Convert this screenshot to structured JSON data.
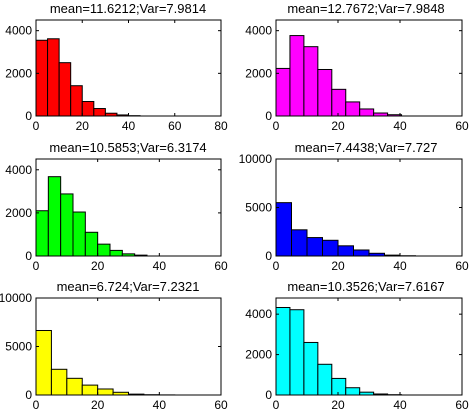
{
  "chart_data": [
    {
      "type": "bar",
      "title": "mean=11.6212;Var=7.9814",
      "color": "#ff0000",
      "xlim": [
        0,
        80
      ],
      "ylim": [
        0,
        4500
      ],
      "xticks": [
        "0",
        "20",
        "40",
        "60",
        "80"
      ],
      "yticks": [
        "0",
        "2000",
        "4000"
      ],
      "bins": [
        [
          0,
          5,
          3550
        ],
        [
          5,
          10,
          3620
        ],
        [
          10,
          15,
          2500
        ],
        [
          15,
          20,
          1420
        ],
        [
          20,
          25,
          680
        ],
        [
          25,
          30,
          350
        ],
        [
          30,
          35,
          130
        ],
        [
          35,
          40,
          50
        ],
        [
          40,
          45,
          15
        ]
      ]
    },
    {
      "type": "bar",
      "title": "mean=12.7672;Var=7.9848",
      "color": "#ff00ff",
      "xlim": [
        0,
        60
      ],
      "ylim": [
        0,
        4500
      ],
      "xticks": [
        "0",
        "20",
        "40",
        "60"
      ],
      "yticks": [
        "0",
        "2000",
        "4000"
      ],
      "bins": [
        [
          0,
          4.5,
          2230
        ],
        [
          4.5,
          9,
          3770
        ],
        [
          9,
          13.5,
          3250
        ],
        [
          13.5,
          18,
          2180
        ],
        [
          18,
          22.5,
          1250
        ],
        [
          22.5,
          27,
          660
        ],
        [
          27,
          31.5,
          330
        ],
        [
          31.5,
          36,
          140
        ],
        [
          36,
          40.5,
          60
        ]
      ]
    },
    {
      "type": "bar",
      "title": "mean=10.5853;Var=6.3174",
      "color": "#00ff00",
      "xlim": [
        0,
        60
      ],
      "ylim": [
        0,
        4500
      ],
      "xticks": [
        "0",
        "20",
        "40",
        "60"
      ],
      "yticks": [
        "0",
        "2000",
        "4000"
      ],
      "bins": [
        [
          0,
          4,
          2100
        ],
        [
          4,
          8,
          3680
        ],
        [
          8,
          12,
          2880
        ],
        [
          12,
          16,
          2040
        ],
        [
          16,
          20,
          1100
        ],
        [
          20,
          24,
          550
        ],
        [
          24,
          28,
          260
        ],
        [
          28,
          32,
          100
        ],
        [
          32,
          36,
          40
        ]
      ]
    },
    {
      "type": "bar",
      "title": "mean=7.4438;Var=7.727",
      "color": "#0000ff",
      "xlim": [
        0,
        60
      ],
      "ylim": [
        0,
        10000
      ],
      "xticks": [
        "0",
        "20",
        "40",
        "60"
      ],
      "yticks": [
        "0",
        "5000",
        "10000"
      ],
      "bins": [
        [
          0,
          5,
          5500
        ],
        [
          5,
          10,
          2700
        ],
        [
          10,
          15,
          1900
        ],
        [
          15,
          20,
          1620
        ],
        [
          20,
          25,
          1050
        ],
        [
          25,
          30,
          620
        ],
        [
          30,
          35,
          280
        ],
        [
          35,
          40,
          90
        ],
        [
          40,
          45,
          25
        ]
      ]
    },
    {
      "type": "bar",
      "title": "mean=6.724;Var=7.2321",
      "color": "#ffff00",
      "xlim": [
        0,
        60
      ],
      "ylim": [
        0,
        10000
      ],
      "xticks": [
        "0",
        "20",
        "40",
        "60"
      ],
      "yticks": [
        "0",
        "5000",
        "10000"
      ],
      "bins": [
        [
          0,
          5,
          6650
        ],
        [
          5,
          10,
          2650
        ],
        [
          10,
          15,
          1720
        ],
        [
          15,
          20,
          1020
        ],
        [
          20,
          25,
          620
        ],
        [
          25,
          30,
          280
        ],
        [
          30,
          35,
          90
        ],
        [
          35,
          40,
          30
        ],
        [
          40,
          45,
          10
        ]
      ]
    },
    {
      "type": "bar",
      "title": "mean=10.3526;Var=7.6167",
      "color": "#00ffff",
      "xlim": [
        0,
        60
      ],
      "ylim": [
        0,
        4800
      ],
      "xticks": [
        "0",
        "20",
        "40",
        "60"
      ],
      "yticks": [
        "0",
        "2000",
        "4000"
      ],
      "bins": [
        [
          0,
          4.5,
          4330
        ],
        [
          4.5,
          9,
          4220
        ],
        [
          9,
          13.5,
          2600
        ],
        [
          13.5,
          18,
          1520
        ],
        [
          18,
          22.5,
          820
        ],
        [
          22.5,
          27,
          360
        ],
        [
          27,
          31.5,
          140
        ],
        [
          31.5,
          36,
          50
        ],
        [
          36,
          40.5,
          15
        ]
      ]
    }
  ]
}
